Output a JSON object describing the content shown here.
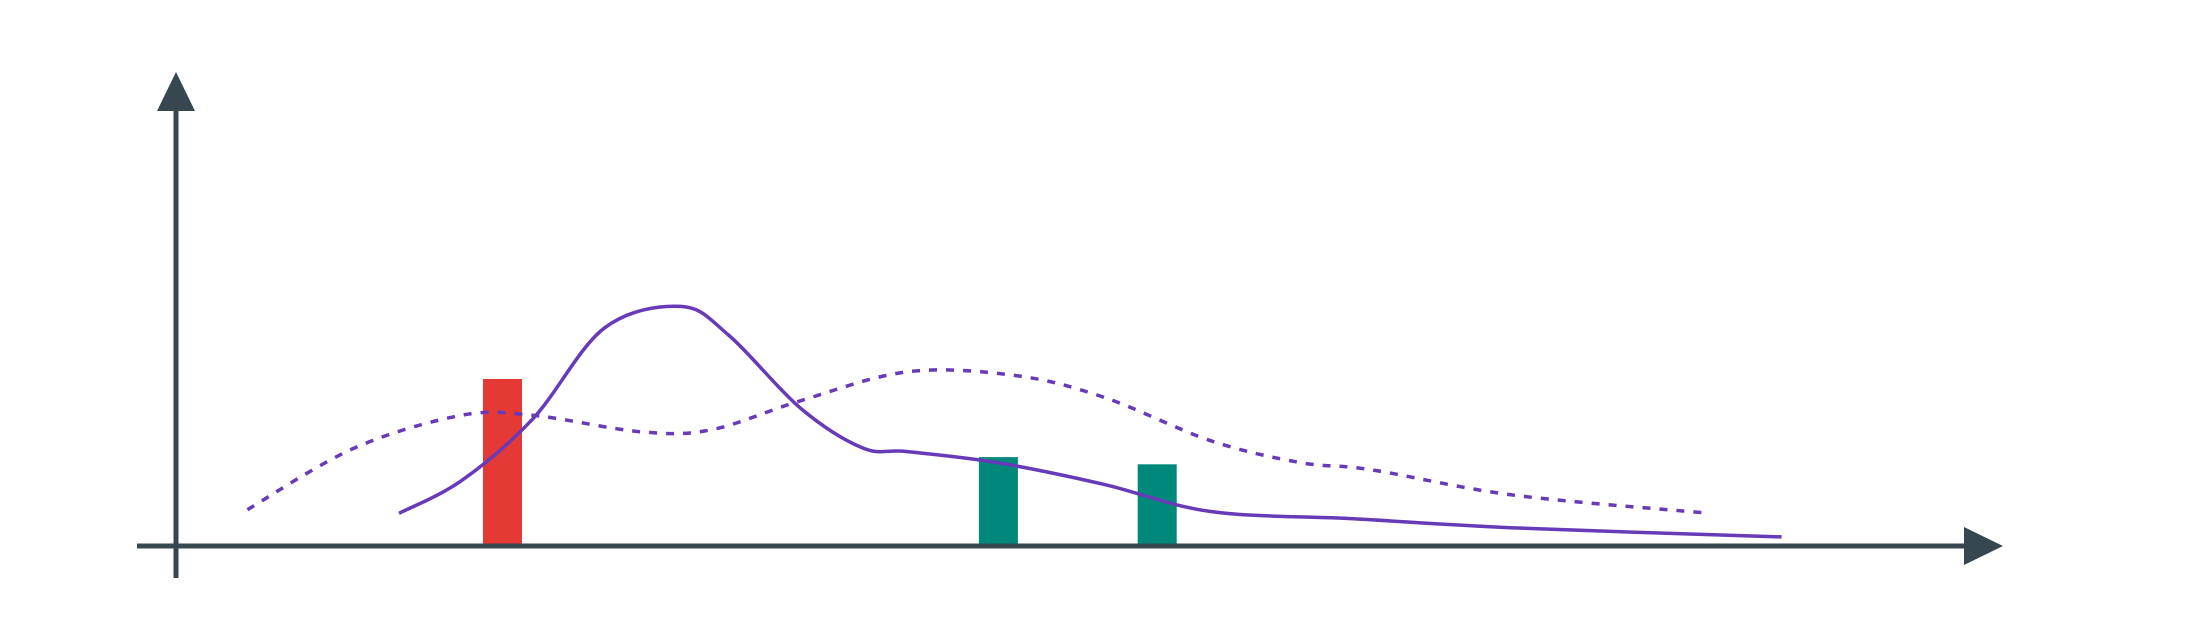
{
  "colors": {
    "axis": "#37474f",
    "curve": "#673ab7",
    "bar_red": "#e53935",
    "bar_teal": "#00897b",
    "background": "#ffffff"
  },
  "chart_data": {
    "type": "line",
    "title": "",
    "xlabel": "",
    "ylabel": "",
    "grid": false,
    "legend": "none",
    "xlim": [
      0,
      100
    ],
    "ylim": [
      0,
      100
    ],
    "series": [
      {
        "style": "solid",
        "color": "#673ab7",
        "points": [
          [
            12.5,
            9
          ],
          [
            16,
            18
          ],
          [
            20,
            35
          ],
          [
            24,
            60
          ],
          [
            28.3,
            66
          ],
          [
            31,
            58
          ],
          [
            35,
            38
          ],
          [
            38.5,
            27
          ],
          [
            41,
            26
          ],
          [
            46,
            23
          ],
          [
            52,
            17
          ],
          [
            58,
            9.5
          ],
          [
            66,
            7.5
          ],
          [
            75,
            5
          ],
          [
            90,
            2.5
          ]
        ]
      },
      {
        "style": "dashed",
        "color": "#673ab7",
        "points": [
          [
            4,
            10
          ],
          [
            10,
            27
          ],
          [
            16,
            36
          ],
          [
            20,
            36
          ],
          [
            26,
            31.5
          ],
          [
            30,
            32
          ],
          [
            35,
            40
          ],
          [
            41,
            48
          ],
          [
            47,
            47
          ],
          [
            52,
            41
          ],
          [
            58,
            29
          ],
          [
            63,
            23
          ],
          [
            67,
            21
          ],
          [
            75,
            14
          ],
          [
            86,
            9
          ]
        ]
      }
    ],
    "bars": [
      {
        "x": 18.3,
        "value": 46,
        "color": "#e53935"
      },
      {
        "x": 46.1,
        "value": 24.5,
        "color": "#00897b"
      },
      {
        "x": 55.0,
        "value": 22.5,
        "color": "#00897b"
      }
    ]
  }
}
